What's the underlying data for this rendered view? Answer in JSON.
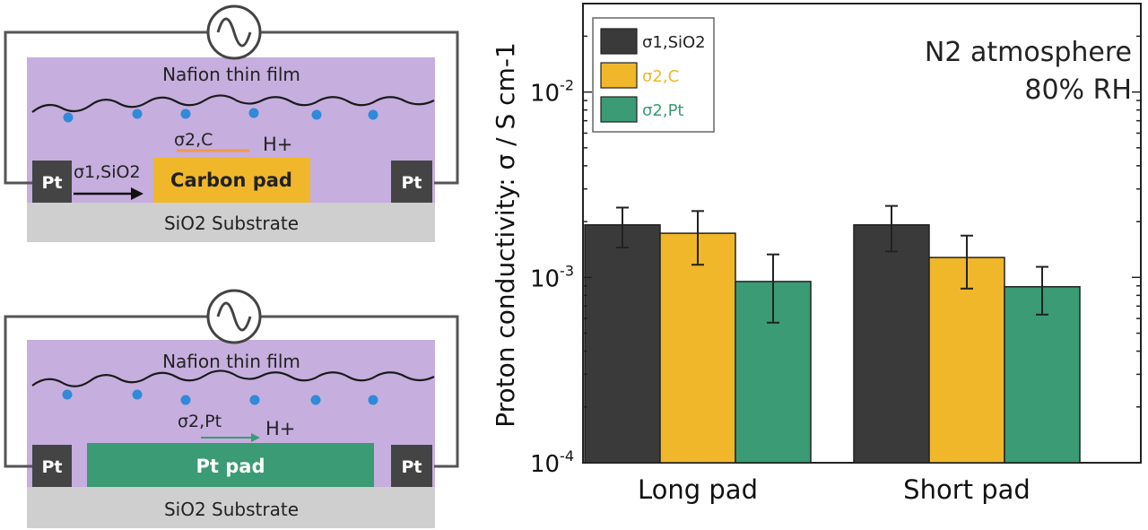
{
  "colors": {
    "nafion": "#c6aede",
    "substrate": "#cfcfcf",
    "pt_block": "#444444",
    "carbon": "#f0b72a",
    "pt_pad": "#3a9b74",
    "wire": "#444444",
    "polymer": "#1a1a1a",
    "droplet": "#2f8ad8",
    "bar_sio2": "#3a3a3a",
    "bar_c": "#f0b72a",
    "bar_pt": "#3a9b74"
  },
  "diagram_top": {
    "film_label": "Nafion thin film",
    "sigma_c": "σ2,C",
    "sigma_sio2": "σ1,SiO2",
    "proton": "H+",
    "pad_label": "Carbon pad",
    "left_electrode": "Pt",
    "right_electrode": "Pt",
    "substrate": "SiO2 Substrate",
    "source_icon": "ac-source-icon"
  },
  "diagram_bottom": {
    "film_label": "Nafion thin film",
    "sigma_pt": "σ2,Pt",
    "proton": "H+",
    "pad_label": "Pt pad",
    "left_electrode": "Pt",
    "right_electrode": "Pt",
    "substrate": "SiO2 Substrate",
    "source_icon": "ac-source-icon"
  },
  "chart_data": {
    "type": "bar",
    "title": "",
    "annotation_line1": "N2 atmosphere",
    "annotation_line2": "80% RH",
    "ylabel": "Proton conductivity: σ / S cm-1",
    "xlabel": "",
    "yscale": "log",
    "ylim": [
      0.0001,
      0.03
    ],
    "ytick_values": [
      0.0001,
      0.001,
      0.01
    ],
    "ytick_labels": [
      "10-4",
      "10-3",
      "10-2"
    ],
    "categories": [
      "Long pad",
      "Short pad"
    ],
    "legend_position": "top-left",
    "series": [
      {
        "name": "σ1,SiO2",
        "color": "#3a3a3a",
        "values": [
          0.00192,
          0.00192
        ],
        "err_low": [
          0.00145,
          0.00138
        ],
        "err_high": [
          0.00238,
          0.00243
        ]
      },
      {
        "name": "σ2,C",
        "color": "#f0b72a",
        "values": [
          0.00173,
          0.00128
        ],
        "err_low": [
          0.00117,
          0.00087
        ],
        "err_high": [
          0.00228,
          0.00168
        ]
      },
      {
        "name": "σ2,Pt",
        "color": "#3a9b74",
        "values": [
          0.00095,
          0.00089
        ],
        "err_low": [
          0.00057,
          0.00063
        ],
        "err_high": [
          0.00133,
          0.00114
        ]
      }
    ]
  }
}
